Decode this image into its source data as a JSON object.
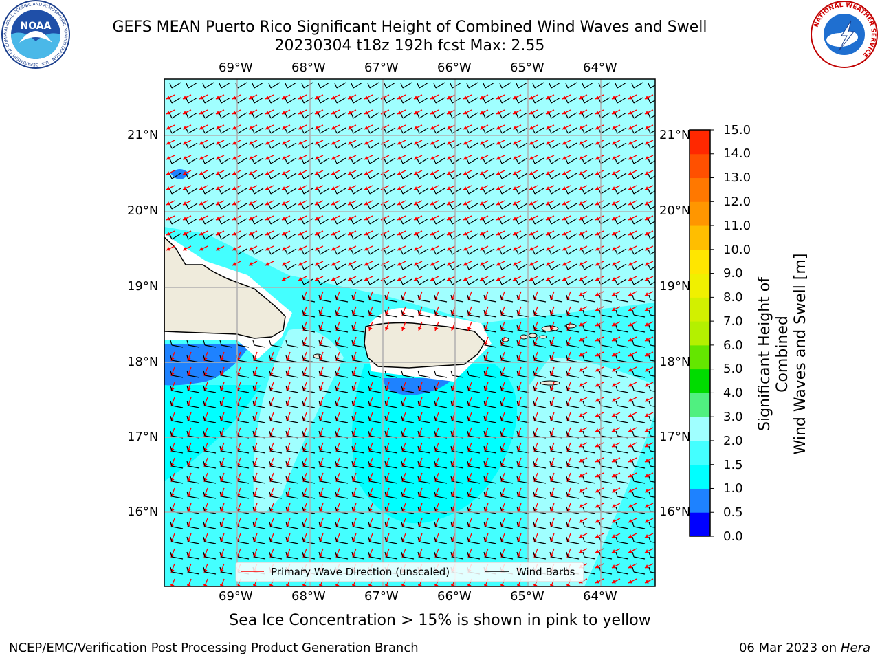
{
  "header": {
    "title_line1": "GEFS MEAN Puerto Rico Significant Height of Combined Wind Waves and Swell",
    "title_line2": "20230304 t18z 192h fcst   Max: 2.55"
  },
  "logos": {
    "noaa_text": "NOAA",
    "noaa_ring": "NATIONAL OCEANIC AND ATMOSPHERIC ADMINISTRATION · U.S. DEPARTMENT OF COMMERCE",
    "nws_ring": "NATIONAL WEATHER SERVICE"
  },
  "map": {
    "lon_labels": [
      "69°W",
      "68°W",
      "67°W",
      "66°W",
      "65°W",
      "64°W"
    ],
    "lat_labels": [
      "21°N",
      "20°N",
      "19°N",
      "18°N",
      "17°N",
      "16°N"
    ],
    "legend": {
      "wave_label": "Primary Wave Direction (unscaled)",
      "barb_label": "Wind Barbs"
    },
    "colors": {
      "land": "#efebdc",
      "ocean_1_5": "#44ffff",
      "ocean_1_0": "#00ffff",
      "ocean_2_0": "#a0ffff",
      "ocean_0_5": "#1e82ff",
      "arrow": "#ff0000",
      "barb": "#000000"
    }
  },
  "colorbar": {
    "title_line1": "Significant Height of Combined",
    "title_line2": "Wind Waves and Swell [m]",
    "ticks": [
      "0.0",
      "0.5",
      "1.0",
      "1.5",
      "2.0",
      "3.0",
      "4.0",
      "5.0",
      "6.0",
      "7.0",
      "8.0",
      "9.0",
      "10.0",
      "11.0",
      "12.0",
      "13.0",
      "14.0",
      "15.0"
    ],
    "colors": [
      "#0000ff",
      "#1e82ff",
      "#00ffff",
      "#44ffff",
      "#a0ffff",
      "#50f080",
      "#00dc00",
      "#64e600",
      "#b4f000",
      "#d2f000",
      "#f0f000",
      "#ffe600",
      "#ffbe00",
      "#ff9600",
      "#ff7800",
      "#ff5000",
      "#ff2800"
    ]
  },
  "footer": {
    "sea_ice_note": "Sea Ice Concentration > 15% is shown in pink to yellow",
    "left": "NCEP/EMC/Verification Post Processing Product Generation Branch",
    "right_date": "06 Mar 2023 on",
    "right_host": "Hera"
  }
}
